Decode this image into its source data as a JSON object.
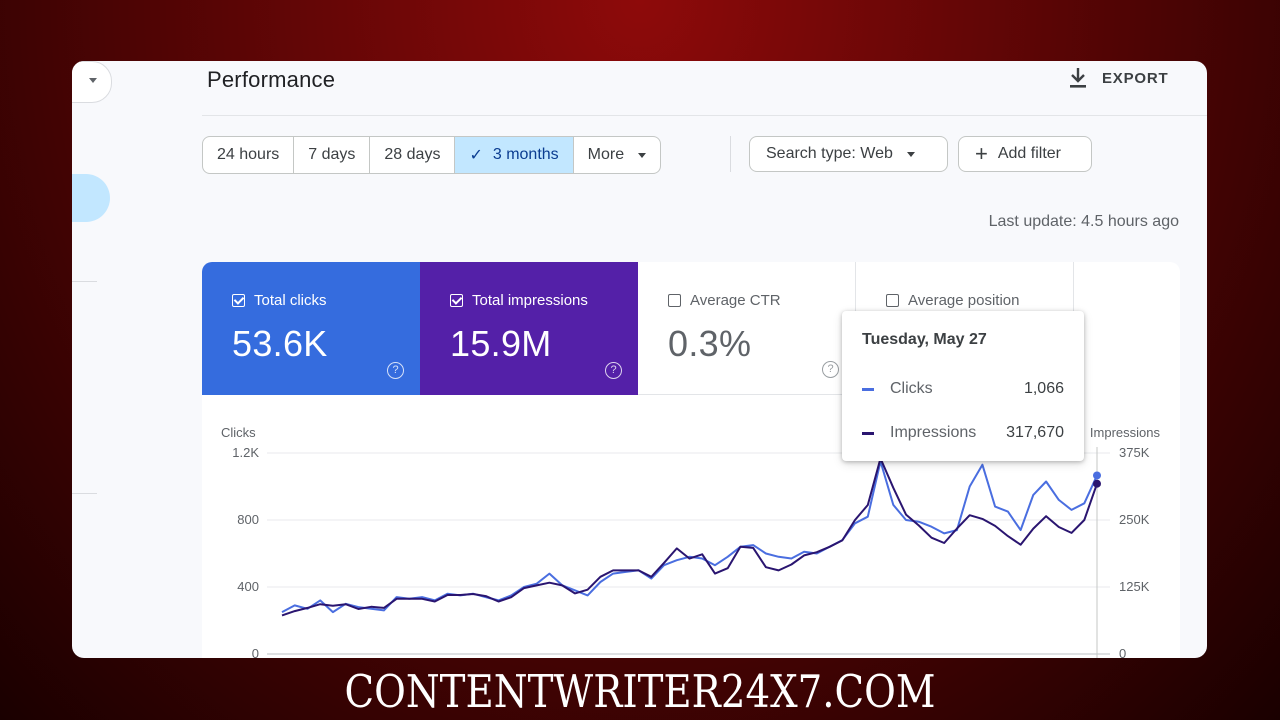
{
  "page": {
    "title": "Performance",
    "export_label": "EXPORT",
    "last_update": "Last update: 4.5 hours ago"
  },
  "filters": {
    "date_ranges": [
      {
        "label": "24 hours",
        "selected": false
      },
      {
        "label": "7 days",
        "selected": false
      },
      {
        "label": "28 days",
        "selected": false
      },
      {
        "label": "3 months",
        "selected": true
      },
      {
        "label": "More",
        "selected": false
      }
    ],
    "search_type": "Search type: Web",
    "add_filter": "Add filter"
  },
  "metrics": [
    {
      "label": "Total clicks",
      "value": "53.6K",
      "checked": true,
      "color": "#356cde"
    },
    {
      "label": "Total impressions",
      "value": "15.9M",
      "checked": true,
      "color": "#5420a8"
    },
    {
      "label": "Average CTR",
      "value": "0.3%",
      "checked": false
    },
    {
      "label": "Average position",
      "value": "",
      "checked": false
    }
  ],
  "tooltip": {
    "date": "Tuesday, May 27",
    "rows": [
      {
        "name": "Clicks",
        "value": "1,066",
        "color": "#4a6ee0"
      },
      {
        "name": "Impressions",
        "value": "317,670",
        "color": "#2a1570"
      }
    ]
  },
  "chart_data": {
    "type": "line",
    "left_axis": {
      "label": "Clicks",
      "ticks": [
        "1.2K",
        "800",
        "400",
        "0"
      ],
      "range": [
        0,
        1200
      ]
    },
    "right_axis": {
      "label": "Impressions",
      "ticks": [
        "375K",
        "250K",
        "125K",
        "0"
      ],
      "range": [
        0,
        375000
      ]
    },
    "grid": true,
    "series": [
      {
        "name": "Clicks",
        "color": "#4a6ee0",
        "values": [
          250,
          290,
          270,
          320,
          250,
          300,
          280,
          270,
          260,
          340,
          330,
          340,
          320,
          360,
          350,
          360,
          340,
          320,
          350,
          400,
          420,
          480,
          410,
          380,
          350,
          430,
          480,
          490,
          500,
          450,
          530,
          560,
          580,
          570,
          530,
          580,
          640,
          650,
          600,
          580,
          570,
          610,
          600,
          640,
          680,
          780,
          820,
          1150,
          890,
          800,
          790,
          760,
          720,
          740,
          1000,
          1130,
          880,
          850,
          740,
          950,
          1030,
          920,
          860,
          900,
          1066
        ]
      },
      {
        "name": "Impressions",
        "color": "#2a1570",
        "values": [
          72000,
          80000,
          86000,
          93000,
          90000,
          93000,
          84000,
          88000,
          86000,
          103000,
          103000,
          103000,
          98000,
          110000,
          110000,
          112000,
          108000,
          98000,
          106000,
          123000,
          128000,
          133000,
          128000,
          113000,
          120000,
          144000,
          156000,
          156000,
          156000,
          144000,
          170000,
          197000,
          178000,
          186000,
          150000,
          160000,
          200000,
          198000,
          162000,
          156000,
          167000,
          184000,
          190000,
          200000,
          212000,
          250000,
          278000,
          365000,
          310000,
          260000,
          240000,
          217000,
          207000,
          234000,
          259000,
          252000,
          239000,
          220000,
          204000,
          234000,
          257000,
          237000,
          226000,
          250000,
          317670
        ]
      }
    ]
  },
  "watermark": "CONTENTWRITER24X7.COM"
}
